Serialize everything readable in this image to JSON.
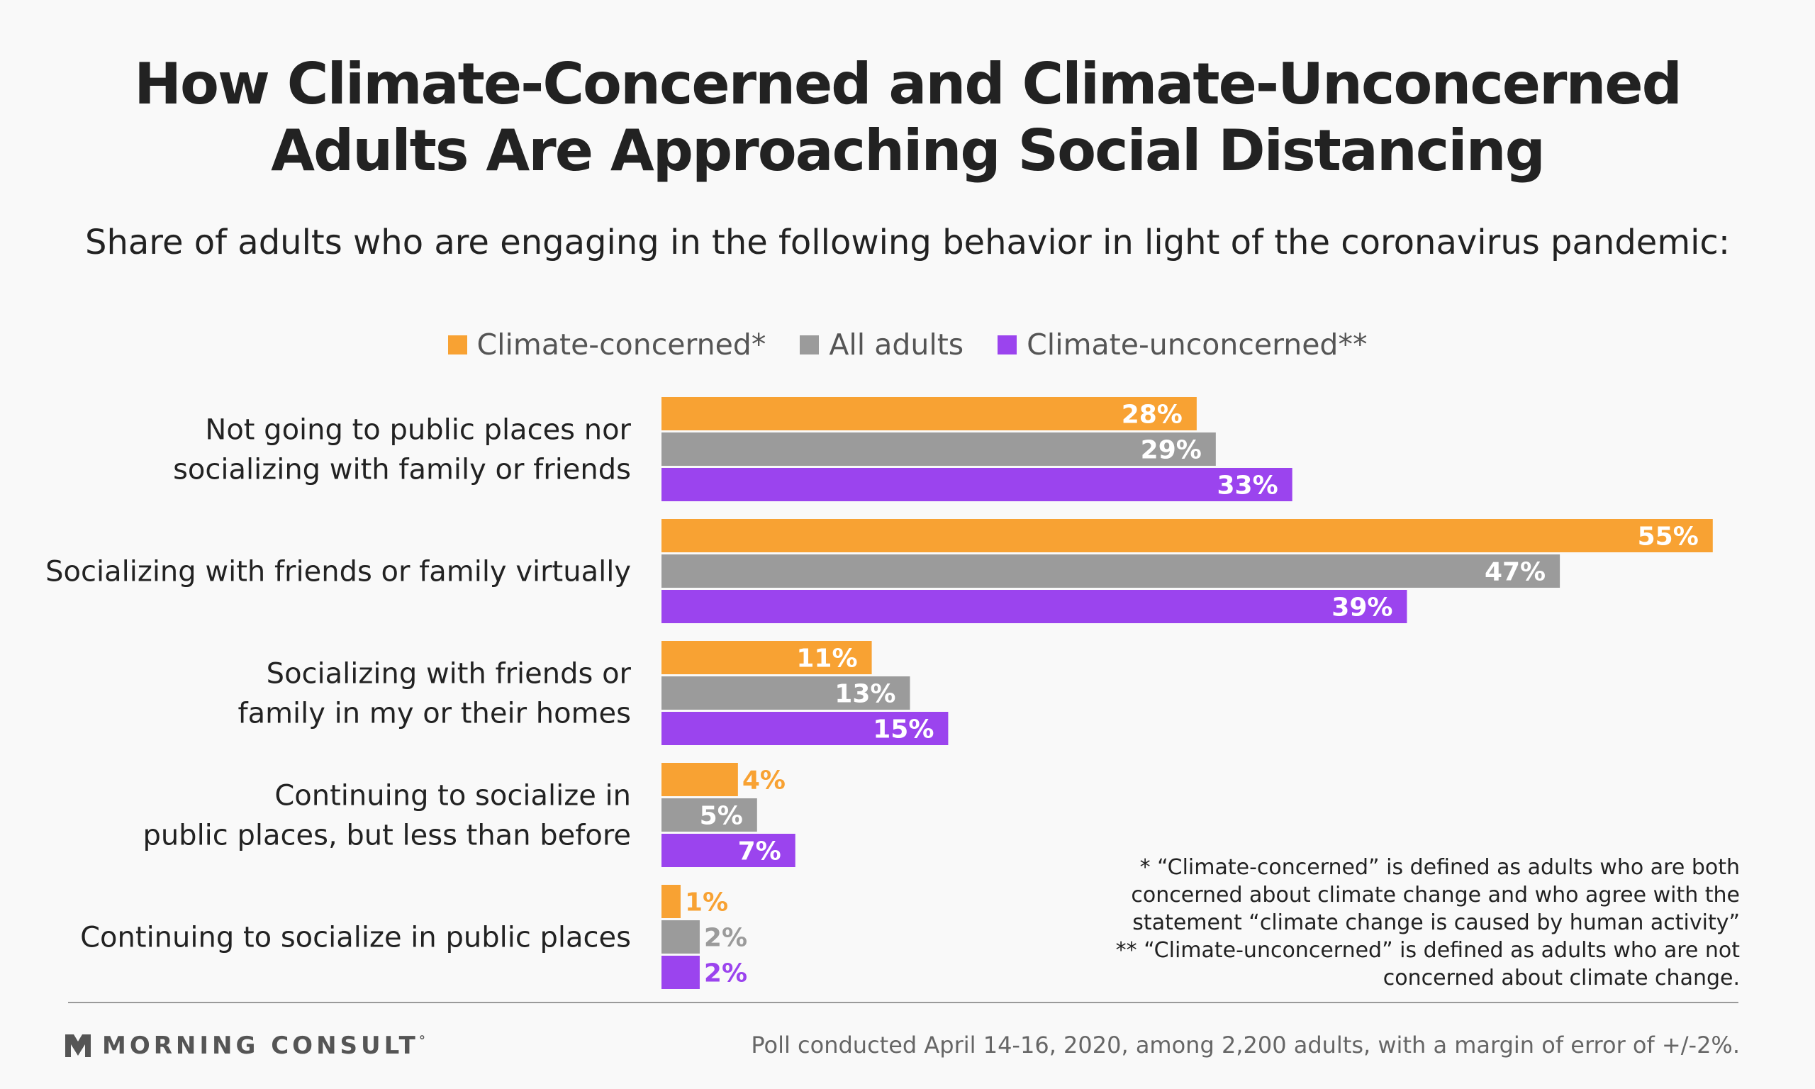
{
  "title_lines": [
    "How Climate-Concerned and Climate-Unconcerned",
    "Adults Are Approaching Social Distancing"
  ],
  "subtitle": "Share of adults who are engaging in the following behavior in light of the coronavirus pandemic:",
  "colors": {
    "climate_concerned": "#f8a233",
    "all_adults": "#9b9b9b",
    "climate_unconcerned": "#9b44ee",
    "background": "#f9f9f9",
    "text": "#222222"
  },
  "chart_data": {
    "type": "bar",
    "orientation": "horizontal",
    "title": "How Climate-Concerned and Climate-Unconcerned Adults Are Approaching Social Distancing",
    "subtitle": "Share of adults who are engaging in the following behavior in light of the coronavirus pandemic:",
    "xlabel": "",
    "ylabel": "",
    "xlim": [
      0,
      55
    ],
    "grid": false,
    "legend_position": "top",
    "value_format": "percent",
    "categories": [
      [
        "Not going to public places nor",
        "socializing with family or friends"
      ],
      [
        "Socializing with friends or family virtually"
      ],
      [
        "Socializing with friends or",
        "family in my or their homes"
      ],
      [
        "Continuing to socialize in",
        "public places, but less than before"
      ],
      [
        "Continuing to socialize in public places"
      ]
    ],
    "series": [
      {
        "name": "Climate-concerned*",
        "color": "#f8a233",
        "values": [
          28,
          55,
          11,
          4,
          1
        ]
      },
      {
        "name": "All adults",
        "color": "#9b9b9b",
        "values": [
          29,
          47,
          13,
          5,
          2
        ]
      },
      {
        "name": "Climate-unconcerned**",
        "color": "#9b44ee",
        "values": [
          33,
          39,
          15,
          7,
          2
        ]
      }
    ]
  },
  "footnotes": [
    "* “Climate-concerned” is defined as adults who are both",
    "concerned about climate change and who agree with the",
    "statement “climate change is caused by human activity”",
    "** “Climate-unconcerned” is defined as adults who are not",
    "concerned about climate change."
  ],
  "brand": {
    "logo_icon": "morning-consult-chevron-icon",
    "name": "MORNING CONSULT",
    "mark": "°"
  },
  "source": "Poll conducted April 14-16, 2020, among 2,200 adults, with a margin of error of +/-2%."
}
